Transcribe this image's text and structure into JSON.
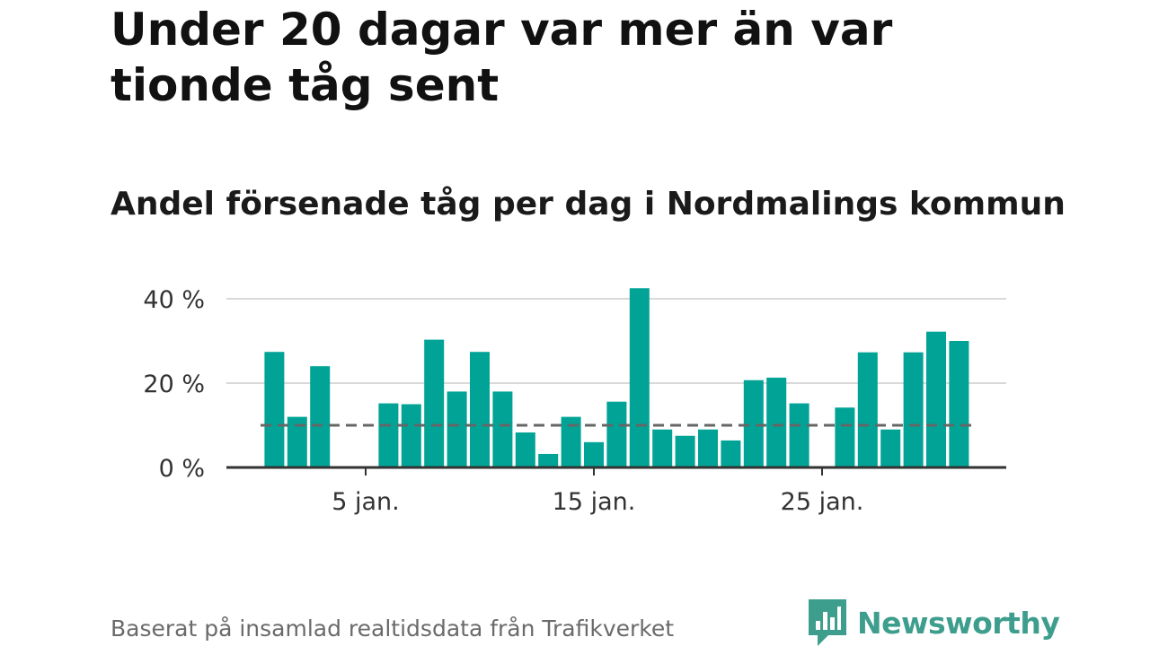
{
  "title": "Under 20 dagar var mer än var tionde tåg sent",
  "subtitle": "Andel försenade tåg per dag i Nordmalings kommun",
  "footer": "Baserat på insamlad realtidsdata från Trafikverket",
  "brand": {
    "name": "Newsworthy",
    "icon": "newsworthy-logo-icon",
    "color": "#3e9e8d"
  },
  "colors": {
    "bar": "#00a396",
    "reference": "#666666",
    "grid": "#d9d9d9",
    "axis": "#333333"
  },
  "chart_data": {
    "type": "bar",
    "x": [
      1,
      2,
      3,
      4,
      5,
      6,
      7,
      8,
      9,
      10,
      11,
      12,
      13,
      14,
      15,
      16,
      17,
      18,
      19,
      20,
      21,
      22,
      23,
      24,
      25,
      26,
      27,
      28,
      29,
      30,
      31
    ],
    "values": [
      27.4,
      12,
      24,
      null,
      null,
      15.2,
      15,
      30.3,
      18,
      27.4,
      18,
      8.3,
      3.2,
      12,
      6,
      15.6,
      42.5,
      9,
      7.5,
      9,
      6.4,
      20.7,
      21.3,
      15.2,
      null,
      14.2,
      27.3,
      9,
      27.3,
      32.2,
      30
    ],
    "reference_line": 10,
    "ylim": [
      0,
      45
    ],
    "yticks": [
      0,
      20,
      40
    ],
    "ytick_labels": [
      "0 %",
      "20 %",
      "40 %"
    ],
    "xticks": [
      5,
      15,
      25
    ],
    "xtick_labels": [
      "5 jan.",
      "15 jan.",
      "25 jan."
    ],
    "grid": true,
    "xlabel": "",
    "ylabel": ""
  }
}
